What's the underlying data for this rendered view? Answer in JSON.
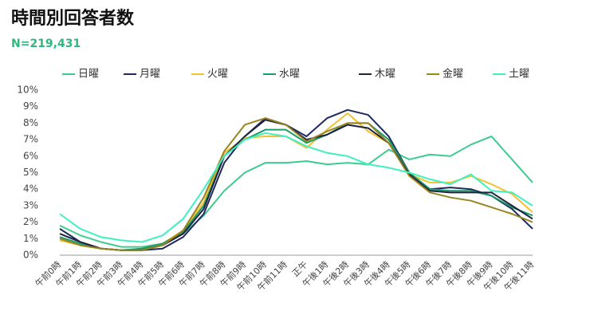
{
  "chart_data": {
    "type": "line",
    "title": "時間別回答者数",
    "subtitle": "N=219,431",
    "categories": [
      "午前0時",
      "午前1時",
      "午前2時",
      "午前3時",
      "午前4時",
      "午前5時",
      "午前6時",
      "午前7時",
      "午前8時",
      "午前9時",
      "午前10時",
      "午前11時",
      "正午",
      "午後1時",
      "午後2時",
      "午後3時",
      "午後4時",
      "午後5時",
      "午後6時",
      "午後7時",
      "午後8時",
      "午後9時",
      "午後10時",
      "午後11時"
    ],
    "ylim": [
      0,
      10
    ],
    "yticks": [
      {
        "value": 0,
        "label": "0%"
      },
      {
        "value": 1,
        "label": "1%"
      },
      {
        "value": 2,
        "label": "2%"
      },
      {
        "value": 3,
        "label": "3%"
      },
      {
        "value": 4,
        "label": "4%"
      },
      {
        "value": 5,
        "label": "5%"
      },
      {
        "value": 6,
        "label": "6%"
      },
      {
        "value": 7,
        "label": "7%"
      },
      {
        "value": 8,
        "label": "8%"
      },
      {
        "value": 9,
        "label": "9%"
      },
      {
        "value": 10,
        "label": "10%"
      }
    ],
    "grid": false,
    "series": [
      {
        "name": "日曜",
        "color": "#3dcc8e",
        "values": [
          1.8,
          1.2,
          0.8,
          0.5,
          0.5,
          0.7,
          1.3,
          2.4,
          3.9,
          5.0,
          5.6,
          5.6,
          5.7,
          5.5,
          5.6,
          5.5,
          6.4,
          5.8,
          6.1,
          6.0,
          6.7,
          7.2,
          5.8,
          4.4
        ]
      },
      {
        "name": "月曜",
        "color": "#1f2a5c",
        "values": [
          1.6,
          0.8,
          0.4,
          0.3,
          0.3,
          0.4,
          1.1,
          2.5,
          5.6,
          7.2,
          8.3,
          7.9,
          7.2,
          8.3,
          8.8,
          8.5,
          7.2,
          5.0,
          4.0,
          4.1,
          4.0,
          3.6,
          2.8,
          1.6
        ]
      },
      {
        "name": "火曜",
        "color": "#f2c230",
        "values": [
          0.9,
          0.6,
          0.4,
          0.3,
          0.4,
          0.7,
          1.5,
          3.2,
          6.2,
          7.1,
          7.2,
          7.2,
          6.5,
          7.6,
          8.6,
          7.5,
          6.8,
          4.9,
          4.4,
          4.4,
          4.8,
          4.3,
          3.7,
          2.6
        ]
      },
      {
        "name": "水曜",
        "color": "#1a9c6a",
        "values": [
          1.1,
          0.7,
          0.4,
          0.3,
          0.4,
          0.7,
          1.4,
          3.0,
          6.0,
          7.0,
          7.6,
          7.6,
          6.8,
          7.3,
          8.0,
          8.0,
          7.0,
          5.0,
          4.0,
          3.9,
          3.9,
          3.6,
          2.9,
          2.4
        ]
      },
      {
        "name": "木曜",
        "color": "#1f2340",
        "values": [
          1.3,
          0.8,
          0.4,
          0.3,
          0.3,
          0.6,
          1.3,
          2.8,
          6.0,
          7.2,
          8.2,
          7.9,
          7.0,
          7.3,
          7.9,
          7.7,
          6.8,
          4.9,
          3.9,
          3.8,
          3.8,
          3.8,
          3.0,
          2.2
        ]
      },
      {
        "name": "金曜",
        "color": "#9a8420",
        "values": [
          1.0,
          0.6,
          0.4,
          0.3,
          0.3,
          0.6,
          1.5,
          3.5,
          6.3,
          7.9,
          8.3,
          7.9,
          6.9,
          7.5,
          8.0,
          8.0,
          6.8,
          4.8,
          3.8,
          3.5,
          3.3,
          2.9,
          2.5,
          2.0
        ]
      },
      {
        "name": "土曜",
        "color": "#3ff0c0",
        "values": [
          2.5,
          1.6,
          1.1,
          0.9,
          0.8,
          1.2,
          2.2,
          4.0,
          6.0,
          7.0,
          7.4,
          7.2,
          6.6,
          6.2,
          6.0,
          5.5,
          5.3,
          5.0,
          4.6,
          4.3,
          4.9,
          3.9,
          3.8,
          3.0
        ]
      }
    ]
  }
}
